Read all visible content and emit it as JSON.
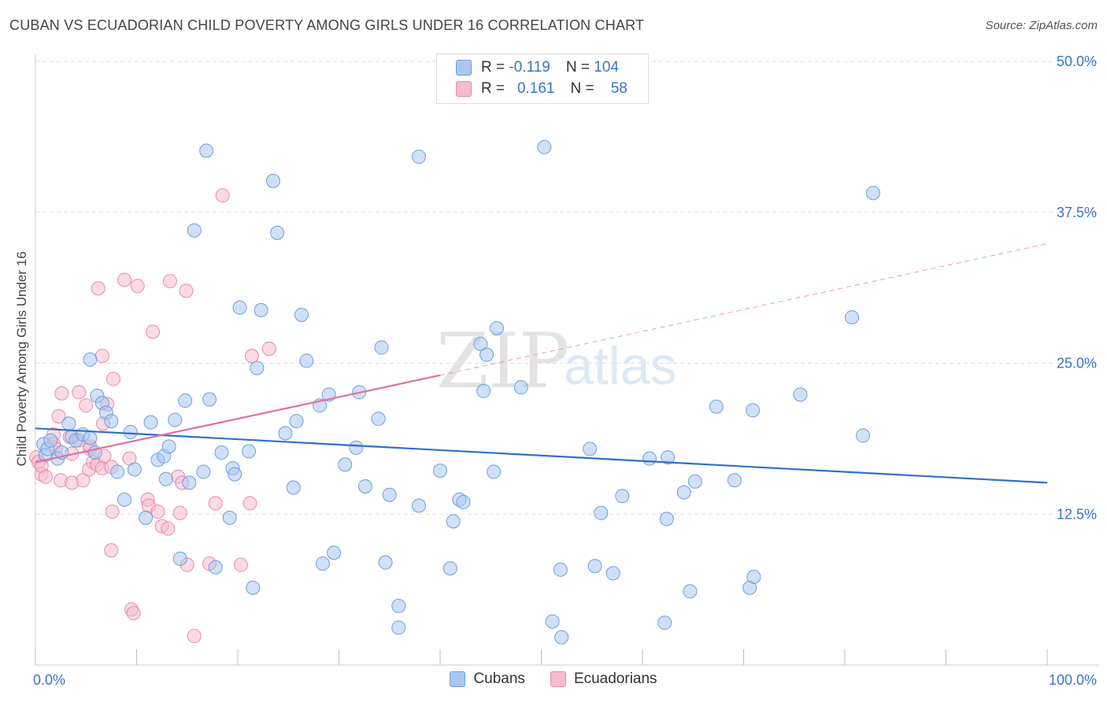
{
  "title": "CUBAN VS ECUADORIAN CHILD POVERTY AMONG GIRLS UNDER 16 CORRELATION CHART",
  "source": "Source: ZipAtlas.com",
  "watermark": {
    "zip": "ZIP",
    "atlas": "atlas"
  },
  "legend": {
    "rows": [
      {
        "r_label": "R =",
        "r_value": "-0.119",
        "n_label": "N =",
        "n_value": "104"
      },
      {
        "r_label": "R =",
        "r_value": "0.161",
        "n_label": "N =",
        "n_value": "58"
      }
    ]
  },
  "bottom_legend": {
    "cubans": "Cubans",
    "ecuadorians": "Ecuadorians"
  },
  "colors": {
    "blue_fill": "#aac7f0",
    "blue_stroke": "#6f9fdc",
    "blue_line": "#2f6fcd",
    "pink_fill": "#f6bcd0",
    "pink_stroke": "#e68aab",
    "pink_line": "#e0709a",
    "tick_text": "#3a72c9",
    "grid": "#dddddd"
  },
  "chart_data": {
    "type": "scatter",
    "title": "CUBAN VS ECUADORIAN CHILD POVERTY AMONG GIRLS UNDER 16 CORRELATION CHART",
    "xlabel": "",
    "ylabel": "Child Poverty Among Girls Under 16",
    "xlim": [
      0,
      100
    ],
    "ylim": [
      0,
      50
    ],
    "x_tick_labels": [
      "0.0%",
      "100.0%"
    ],
    "y_ticks": [
      12.5,
      25.0,
      37.5,
      50.0
    ],
    "y_tick_labels": [
      "12.5%",
      "25.0%",
      "37.5%",
      "50.0%"
    ],
    "grid": true,
    "series": [
      {
        "name": "Cubans",
        "r": -0.119,
        "n": 104,
        "trend": {
          "x": [
            0,
            100
          ],
          "y": [
            19.6,
            15.1
          ]
        },
        "points": [
          [
            0.8,
            18.3
          ],
          [
            1.0,
            17.4
          ],
          [
            1.2,
            17.9
          ],
          [
            1.5,
            18.6
          ],
          [
            2.2,
            17.1
          ],
          [
            2.6,
            17.6
          ],
          [
            3.3,
            20.0
          ],
          [
            3.6,
            18.9
          ],
          [
            4.0,
            18.6
          ],
          [
            4.7,
            19.1
          ],
          [
            5.4,
            18.8
          ],
          [
            5.4,
            25.3
          ],
          [
            5.9,
            17.6
          ],
          [
            6.1,
            22.3
          ],
          [
            6.6,
            21.7
          ],
          [
            7.0,
            20.9
          ],
          [
            7.5,
            20.2
          ],
          [
            8.1,
            16.0
          ],
          [
            8.8,
            13.7
          ],
          [
            9.4,
            19.3
          ],
          [
            9.8,
            16.2
          ],
          [
            10.9,
            12.2
          ],
          [
            11.4,
            20.1
          ],
          [
            12.1,
            17.0
          ],
          [
            12.7,
            17.3
          ],
          [
            12.9,
            15.4
          ],
          [
            13.2,
            18.1
          ],
          [
            13.8,
            20.3
          ],
          [
            14.3,
            8.8
          ],
          [
            14.8,
            21.9
          ],
          [
            15.2,
            15.1
          ],
          [
            15.7,
            36.0
          ],
          [
            16.6,
            16.0
          ],
          [
            16.9,
            42.6
          ],
          [
            17.2,
            22.0
          ],
          [
            17.8,
            8.1
          ],
          [
            18.4,
            17.6
          ],
          [
            19.2,
            12.2
          ],
          [
            19.5,
            16.3
          ],
          [
            19.7,
            15.8
          ],
          [
            20.2,
            29.6
          ],
          [
            21.1,
            17.7
          ],
          [
            21.5,
            6.4
          ],
          [
            21.9,
            24.6
          ],
          [
            22.3,
            29.4
          ],
          [
            23.5,
            40.1
          ],
          [
            23.9,
            35.8
          ],
          [
            24.7,
            19.2
          ],
          [
            25.5,
            14.7
          ],
          [
            25.8,
            20.2
          ],
          [
            26.3,
            29.0
          ],
          [
            26.8,
            25.2
          ],
          [
            28.1,
            21.5
          ],
          [
            28.4,
            8.4
          ],
          [
            29.0,
            22.4
          ],
          [
            29.5,
            9.3
          ],
          [
            30.6,
            16.6
          ],
          [
            31.7,
            18.0
          ],
          [
            32.0,
            22.6
          ],
          [
            32.6,
            14.8
          ],
          [
            33.9,
            20.4
          ],
          [
            34.2,
            26.3
          ],
          [
            34.6,
            8.5
          ],
          [
            35.0,
            14.1
          ],
          [
            35.9,
            4.9
          ],
          [
            35.9,
            3.1
          ],
          [
            37.9,
            13.2
          ],
          [
            37.9,
            42.1
          ],
          [
            40.0,
            16.1
          ],
          [
            41.0,
            8.0
          ],
          [
            41.3,
            11.9
          ],
          [
            41.9,
            13.7
          ],
          [
            42.3,
            13.5
          ],
          [
            44.0,
            26.6
          ],
          [
            44.3,
            22.7
          ],
          [
            44.6,
            25.7
          ],
          [
            45.3,
            16.0
          ],
          [
            45.6,
            27.9
          ],
          [
            48.0,
            23.0
          ],
          [
            50.3,
            42.9
          ],
          [
            51.1,
            3.6
          ],
          [
            51.9,
            7.9
          ],
          [
            52.0,
            2.3
          ],
          [
            54.8,
            17.9
          ],
          [
            55.3,
            8.2
          ],
          [
            55.9,
            12.6
          ],
          [
            57.1,
            7.6
          ],
          [
            58.0,
            14.0
          ],
          [
            60.7,
            17.1
          ],
          [
            62.2,
            3.5
          ],
          [
            62.4,
            12.1
          ],
          [
            62.5,
            17.2
          ],
          [
            64.1,
            14.3
          ],
          [
            64.7,
            6.1
          ],
          [
            65.2,
            15.2
          ],
          [
            67.3,
            21.4
          ],
          [
            69.1,
            15.3
          ],
          [
            70.6,
            6.4
          ],
          [
            70.9,
            21.1
          ],
          [
            71.0,
            7.3
          ],
          [
            75.6,
            22.4
          ],
          [
            80.7,
            28.8
          ],
          [
            81.8,
            19.0
          ],
          [
            82.8,
            39.1
          ]
        ]
      },
      {
        "name": "Ecuadorians",
        "r": 0.161,
        "n": 58,
        "trend": {
          "x": [
            0,
            40
          ],
          "y": [
            16.8,
            24.0
          ]
        },
        "trend_dashed": {
          "x": [
            40,
            100
          ],
          "y": [
            24.0,
            34.9
          ]
        },
        "points": [
          [
            0.1,
            17.2
          ],
          [
            0.3,
            16.8
          ],
          [
            0.6,
            15.8
          ],
          [
            0.6,
            16.5
          ],
          [
            1.0,
            15.6
          ],
          [
            1.8,
            18.3
          ],
          [
            1.8,
            19.1
          ],
          [
            2.0,
            17.9
          ],
          [
            2.3,
            20.6
          ],
          [
            2.5,
            15.3
          ],
          [
            2.6,
            22.5
          ],
          [
            3.4,
            18.9
          ],
          [
            3.6,
            17.5
          ],
          [
            3.6,
            15.1
          ],
          [
            4.3,
            18.6
          ],
          [
            4.3,
            22.6
          ],
          [
            4.7,
            15.3
          ],
          [
            5.0,
            21.5
          ],
          [
            5.3,
            16.2
          ],
          [
            5.4,
            17.9
          ],
          [
            5.4,
            18.1
          ],
          [
            5.7,
            16.8
          ],
          [
            6.1,
            16.6
          ],
          [
            6.2,
            31.2
          ],
          [
            6.6,
            16.3
          ],
          [
            6.6,
            25.6
          ],
          [
            6.7,
            20.0
          ],
          [
            6.8,
            17.3
          ],
          [
            7.1,
            21.6
          ],
          [
            7.5,
            16.4
          ],
          [
            7.5,
            9.5
          ],
          [
            7.6,
            12.7
          ],
          [
            7.7,
            23.7
          ],
          [
            8.8,
            31.9
          ],
          [
            9.3,
            17.1
          ],
          [
            9.5,
            4.6
          ],
          [
            9.7,
            4.3
          ],
          [
            10.1,
            31.4
          ],
          [
            11.1,
            13.7
          ],
          [
            11.2,
            13.2
          ],
          [
            11.6,
            27.6
          ],
          [
            12.1,
            12.7
          ],
          [
            12.5,
            11.5
          ],
          [
            13.1,
            11.3
          ],
          [
            13.3,
            31.8
          ],
          [
            14.1,
            15.6
          ],
          [
            14.3,
            12.6
          ],
          [
            14.5,
            15.1
          ],
          [
            14.9,
            31.0
          ],
          [
            15.0,
            8.3
          ],
          [
            15.7,
            2.4
          ],
          [
            17.2,
            8.4
          ],
          [
            17.8,
            13.4
          ],
          [
            18.5,
            38.9
          ],
          [
            20.3,
            8.3
          ],
          [
            21.2,
            13.4
          ],
          [
            21.4,
            25.6
          ],
          [
            23.1,
            26.2
          ]
        ]
      }
    ]
  }
}
